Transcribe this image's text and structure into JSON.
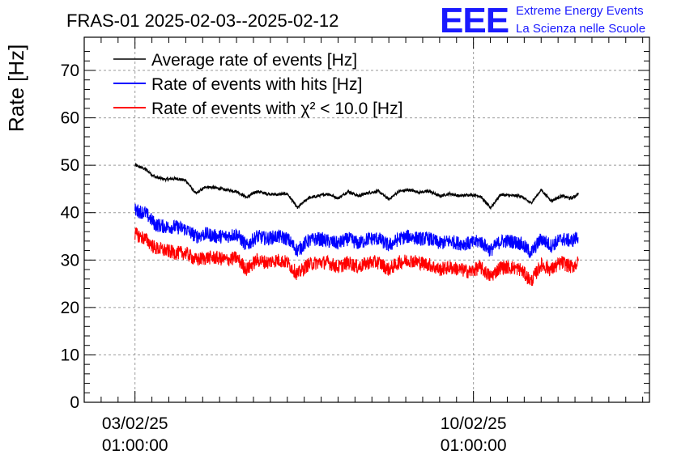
{
  "header": {
    "title": "FRAS-01 2025-02-03--2025-02-12",
    "logo_text": "EEE",
    "logo_line1": "Extreme Energy Events",
    "logo_line2": "La Scienza nelle Scuole",
    "logo_color": "#1a1aff"
  },
  "chart_data": {
    "type": "line",
    "title": "FRAS-01 2025-02-03--2025-02-12",
    "xlabel": "",
    "ylabel": "Rate [Hz]",
    "ylim": [
      0,
      77
    ],
    "xlim_days": [
      -1.5,
      15.2
    ],
    "grid": true,
    "yticks": [
      0,
      10,
      20,
      30,
      40,
      50,
      60,
      70
    ],
    "xticks": [
      {
        "day": 0,
        "date": "03/02/25",
        "time": "01:00:00"
      },
      {
        "day": 10,
        "date": "10/02/25",
        "time": "01:00:00"
      }
    ],
    "legend_position": "top-left",
    "series": [
      {
        "name": "Average rate of events [Hz]",
        "color": "#000000",
        "noise": 0.3,
        "x": [
          0,
          0.3,
          0.6,
          0.9,
          1.2,
          1.5,
          1.8,
          2.1,
          2.4,
          2.7,
          3.0,
          3.3,
          3.6,
          3.9,
          4.2,
          4.5,
          4.8,
          5.1,
          5.4,
          5.7,
          6.0,
          6.3,
          6.6,
          6.9,
          7.2,
          7.5,
          7.8,
          8.1,
          8.4,
          8.7,
          9.0,
          9.3,
          9.6,
          9.9,
          10.2,
          10.5,
          10.8,
          11.1,
          11.4,
          11.7,
          12.0,
          12.3,
          12.6,
          12.9,
          13.1
        ],
        "y": [
          50,
          49.2,
          47.5,
          47,
          47.2,
          46.8,
          44,
          45.5,
          45.2,
          44.8,
          44.5,
          43.2,
          44.5,
          44,
          43.8,
          44,
          41,
          43,
          43.5,
          44,
          43,
          44.5,
          43.5,
          44.2,
          44.5,
          42.8,
          44.5,
          44.8,
          44.3,
          44.5,
          43.5,
          44,
          43.5,
          43.8,
          43.5,
          41,
          43.8,
          43.6,
          43.5,
          42,
          44.8,
          42.5,
          43.5,
          43,
          44
        ]
      },
      {
        "name": "Rate of events with hits [Hz]",
        "color": "#0000ff",
        "noise": 1.5,
        "x": [
          0,
          0.3,
          0.6,
          0.9,
          1.2,
          1.5,
          1.8,
          2.1,
          2.4,
          2.7,
          3.0,
          3.3,
          3.6,
          3.9,
          4.2,
          4.5,
          4.8,
          5.1,
          5.4,
          5.7,
          6.0,
          6.3,
          6.6,
          6.9,
          7.2,
          7.5,
          7.8,
          8.1,
          8.4,
          8.7,
          9.0,
          9.3,
          9.6,
          9.9,
          10.2,
          10.5,
          10.8,
          11.1,
          11.4,
          11.7,
          12.0,
          12.3,
          12.6,
          12.9,
          13.1
        ],
        "y": [
          40.5,
          40,
          37.5,
          37,
          37,
          36.5,
          35,
          35.5,
          35,
          35,
          35.5,
          33,
          35,
          34.5,
          35,
          34.5,
          32,
          34,
          34.5,
          34,
          33.5,
          34.5,
          33.5,
          34.5,
          34.5,
          33,
          34.5,
          35,
          34.5,
          34.5,
          33.5,
          34,
          33.5,
          33.5,
          34,
          32,
          34,
          34,
          33.5,
          31.5,
          34.5,
          33,
          34.5,
          34,
          35
        ]
      },
      {
        "name": "Rate of events with χ² < 10.0 [Hz]",
        "color": "#ff0000",
        "noise": 1.5,
        "x": [
          0,
          0.3,
          0.6,
          0.9,
          1.2,
          1.5,
          1.8,
          2.1,
          2.4,
          2.7,
          3.0,
          3.3,
          3.6,
          3.9,
          4.2,
          4.5,
          4.8,
          5.1,
          5.4,
          5.7,
          6.0,
          6.3,
          6.6,
          6.9,
          7.2,
          7.5,
          7.8,
          8.1,
          8.4,
          8.7,
          9.0,
          9.3,
          9.6,
          9.9,
          10.2,
          10.5,
          10.8,
          11.1,
          11.4,
          11.7,
          12.0,
          12.3,
          12.6,
          12.9,
          13.1
        ],
        "y": [
          35.5,
          34.5,
          32.5,
          32,
          31.5,
          31.5,
          30,
          30.5,
          30.5,
          30,
          30.5,
          28,
          30,
          29.5,
          30,
          29.5,
          27,
          29,
          29.5,
          29.5,
          28.5,
          29.5,
          28.5,
          29.5,
          29.5,
          28,
          29.5,
          30,
          29.5,
          29,
          28,
          28.5,
          28,
          27.5,
          28.5,
          26.5,
          28.5,
          28.5,
          28,
          25.5,
          29,
          28,
          29.5,
          28.5,
          29.5
        ]
      }
    ]
  }
}
